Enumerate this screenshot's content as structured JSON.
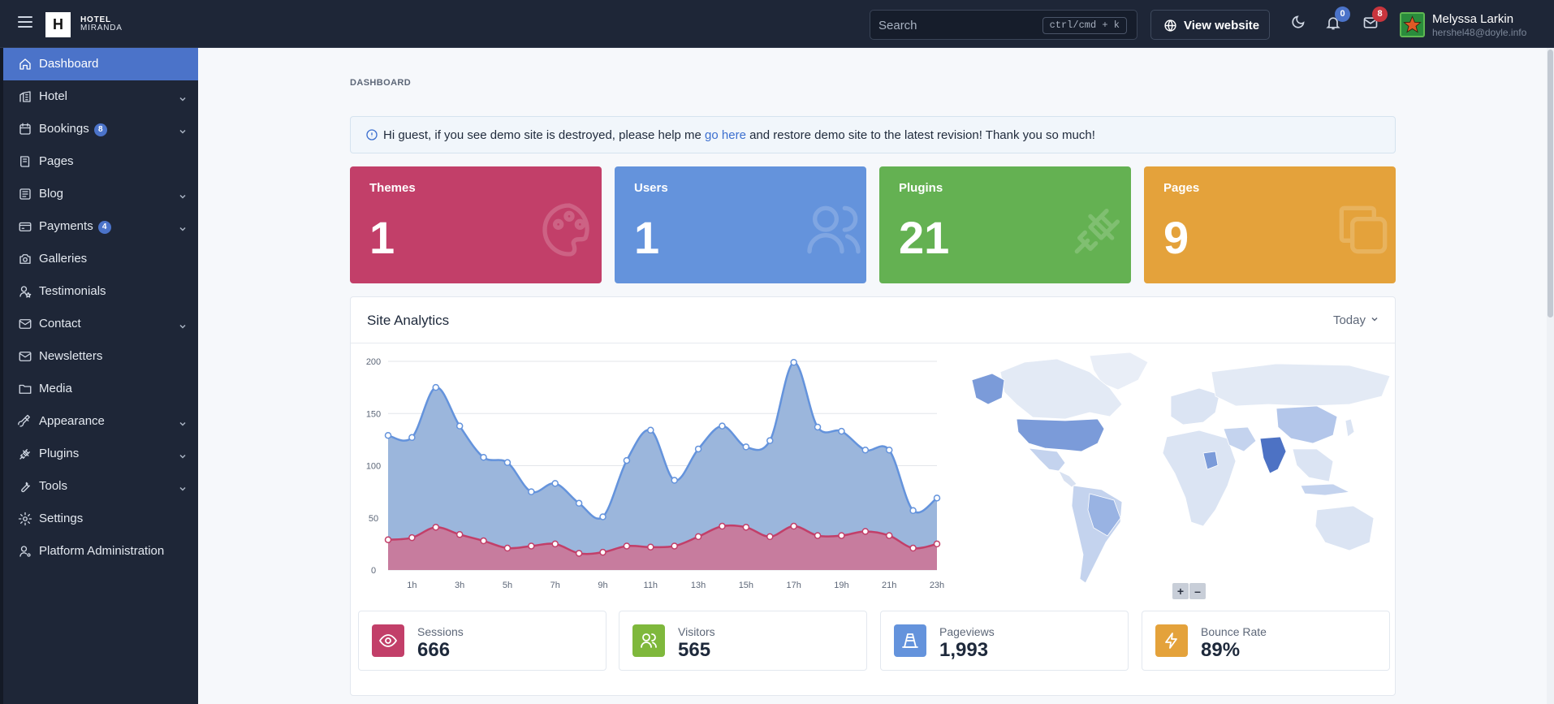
{
  "brand": {
    "logo_letter": "H",
    "line1": "HOTEL",
    "line2": "MIRANDA"
  },
  "header": {
    "search_placeholder": "Search",
    "search_shortcut": "ctrl/cmd + k",
    "view_website": "View website",
    "notifications_count": "0",
    "messages_count": "8",
    "user_name": "Melyssa Larkin",
    "user_email": "hershel48@doyle.info"
  },
  "sidebar": {
    "items": [
      {
        "label": "Dashboard",
        "icon": "home-icon",
        "active": true
      },
      {
        "label": "Hotel",
        "icon": "building-icon",
        "chevron": true
      },
      {
        "label": "Bookings",
        "icon": "calendar-icon",
        "badge": "8",
        "chevron": true
      },
      {
        "label": "Pages",
        "icon": "book-icon"
      },
      {
        "label": "Blog",
        "icon": "article-icon",
        "chevron": true
      },
      {
        "label": "Payments",
        "icon": "credit-card-icon",
        "badge": "4",
        "chevron": true
      },
      {
        "label": "Galleries",
        "icon": "camera-icon"
      },
      {
        "label": "Testimonials",
        "icon": "user-star-icon"
      },
      {
        "label": "Contact",
        "icon": "mail-icon",
        "chevron": true
      },
      {
        "label": "Newsletters",
        "icon": "mail-icon"
      },
      {
        "label": "Media",
        "icon": "folder-icon"
      },
      {
        "label": "Appearance",
        "icon": "brush-icon",
        "chevron": true
      },
      {
        "label": "Plugins",
        "icon": "plug-icon",
        "chevron": true
      },
      {
        "label": "Tools",
        "icon": "tool-icon",
        "chevron": true
      },
      {
        "label": "Settings",
        "icon": "gear-icon"
      },
      {
        "label": "Platform Administration",
        "icon": "user-cog-icon"
      }
    ]
  },
  "main": {
    "breadcrumb": "DASHBOARD",
    "alert": {
      "before": "Hi guest, if you see demo site is destroyed, please help me ",
      "link": "go here",
      "after": " and restore demo site to the latest revision! Thank you so much!"
    },
    "cards": [
      {
        "title": "Themes",
        "value": "1",
        "color": "#c23f69",
        "icon": "palette-icon"
      },
      {
        "title": "Users",
        "value": "1",
        "color": "#6493dc",
        "icon": "users-icon"
      },
      {
        "title": "Plugins",
        "value": "21",
        "color": "#64b152",
        "icon": "plug-icon"
      },
      {
        "title": "Pages",
        "value": "9",
        "color": "#e4a23b",
        "icon": "copy-icon"
      }
    ],
    "analytics": {
      "title": "Site Analytics",
      "range": "Today",
      "zoom_in": "+",
      "zoom_out": "–",
      "stats": [
        {
          "label": "Sessions",
          "value": "666",
          "color": "#c23f69",
          "icon": "eye-icon"
        },
        {
          "label": "Visitors",
          "value": "565",
          "color": "#7fb83c",
          "icon": "users-icon"
        },
        {
          "label": "Pageviews",
          "value": "1,993",
          "color": "#6493dc",
          "icon": "traffic-cone-icon"
        },
        {
          "label": "Bounce Rate",
          "value": "89%",
          "color": "#e4a23b",
          "icon": "bolt-icon"
        }
      ]
    }
  },
  "chart_data": {
    "type": "area",
    "x": [
      "0h",
      "1h",
      "2h",
      "3h",
      "4h",
      "5h",
      "6h",
      "7h",
      "8h",
      "9h",
      "10h",
      "11h",
      "12h",
      "13h",
      "14h",
      "15h",
      "16h",
      "17h",
      "18h",
      "19h",
      "20h",
      "21h",
      "22h",
      "23h"
    ],
    "x_tick_labels": [
      "1h",
      "3h",
      "5h",
      "7h",
      "9h",
      "11h",
      "13h",
      "15h",
      "17h",
      "19h",
      "21h",
      "23h"
    ],
    "ylim": [
      0,
      200
    ],
    "yticks": [
      0,
      50,
      100,
      150,
      200
    ],
    "grid": true,
    "series": [
      {
        "values": [
          129,
          127,
          175,
          138,
          108,
          103,
          75,
          83,
          64,
          51,
          105,
          134,
          86,
          116,
          138,
          118,
          124,
          199,
          137,
          133,
          115,
          115,
          57,
          69
        ],
        "color": "#6493dc"
      },
      {
        "values": [
          29,
          31,
          41,
          34,
          28,
          21,
          23,
          25,
          16,
          17,
          23,
          22,
          23,
          32,
          42,
          41,
          32,
          42,
          33,
          33,
          37,
          33,
          21,
          25
        ],
        "color": "#c23f69"
      }
    ]
  }
}
